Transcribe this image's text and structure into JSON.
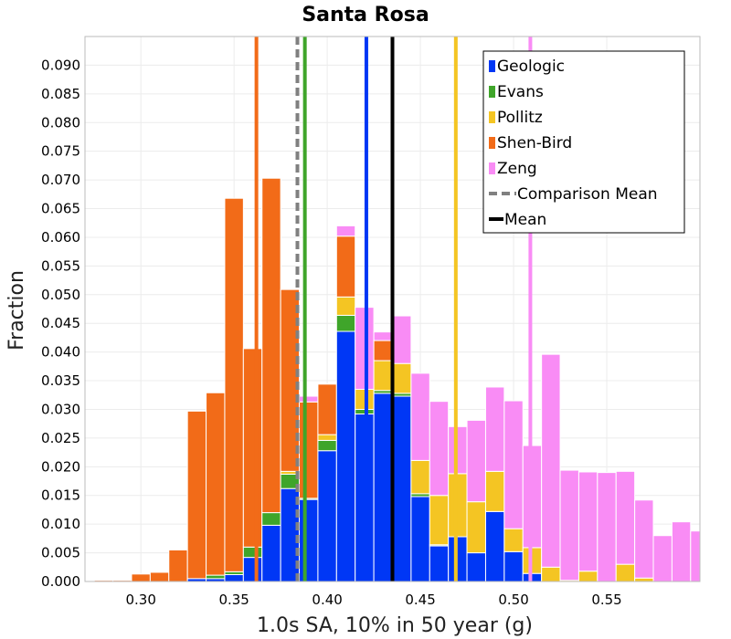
{
  "chart_data": {
    "type": "bar",
    "title": "Santa Rosa",
    "xlabel": "1.0s SA, 10% in 50 year (g)",
    "ylabel": "Fraction",
    "xlim": [
      0.27,
      0.6
    ],
    "ylim": [
      0.0,
      0.095
    ],
    "grid": true,
    "legend_position": "top-right",
    "x_ticks": [
      "0.30",
      "0.35",
      "0.40",
      "0.45",
      "0.50",
      "0.55"
    ],
    "y_ticks": [
      "0.000",
      "0.005",
      "0.010",
      "0.015",
      "0.020",
      "0.025",
      "0.030",
      "0.035",
      "0.040",
      "0.045",
      "0.050",
      "0.055",
      "0.060",
      "0.065",
      "0.070",
      "0.075",
      "0.080",
      "0.085",
      "0.090"
    ],
    "bin_width": 0.01,
    "bin_starts": [
      0.275,
      0.285,
      0.295,
      0.305,
      0.315,
      0.325,
      0.335,
      0.345,
      0.355,
      0.365,
      0.375,
      0.385,
      0.395,
      0.405,
      0.415,
      0.425,
      0.435,
      0.445,
      0.455,
      0.465,
      0.475,
      0.485,
      0.495,
      0.505,
      0.515,
      0.525,
      0.535,
      0.545,
      0.555,
      0.565,
      0.575,
      0.585,
      0.595
    ],
    "series": [
      {
        "name": "Geologic",
        "color": "#0037f5",
        "values": [
          0,
          0,
          0,
          0,
          0,
          0.0005,
          0.0005,
          0.0012,
          0.0042,
          0.0098,
          0.0162,
          0.0143,
          0.0228,
          0.0436,
          0.0292,
          0.0328,
          0.0323,
          0.0148,
          0.0062,
          0.0078,
          0.005,
          0.0122,
          0.0052,
          0.0014,
          0,
          0,
          0,
          0,
          0,
          0,
          0,
          0,
          0
        ]
      },
      {
        "name": "Evans",
        "color": "#3fa52a",
        "values": [
          0,
          0,
          0,
          0,
          0,
          0,
          0.0006,
          0.0005,
          0.0018,
          0.0022,
          0.0025,
          0.0002,
          0.0018,
          0.0028,
          0.0008,
          0.0005,
          0.0005,
          0.0005,
          0.0002,
          0,
          0,
          0,
          0,
          0,
          0,
          0,
          0,
          0,
          0,
          0,
          0,
          0,
          0
        ]
      },
      {
        "name": "Pollitz",
        "color": "#f4c523",
        "values": [
          0,
          0,
          0,
          0,
          0,
          0,
          0,
          0,
          0,
          0,
          0.0005,
          0,
          0.001,
          0.0032,
          0.0035,
          0.0052,
          0.0052,
          0.0058,
          0.0086,
          0.011,
          0.0089,
          0.007,
          0.004,
          0.0045,
          0.0025,
          0.0002,
          0.0018,
          0,
          0.003,
          0.0006,
          0,
          0,
          0
        ]
      },
      {
        "name": "Shen-Bird",
        "color": "#f26b18",
        "values": [
          0.0002,
          0.0002,
          0.0013,
          0.0016,
          0.0055,
          0.0292,
          0.0318,
          0.0651,
          0.0346,
          0.0583,
          0.0317,
          0.0168,
          0.0088,
          0.0106,
          0.0,
          0.0035,
          0,
          0,
          0,
          0,
          0,
          0,
          0,
          0,
          0,
          0,
          0,
          0,
          0,
          0,
          0,
          0,
          0
        ]
      },
      {
        "name": "Zeng",
        "color": "#f98cf5",
        "values": [
          0,
          0,
          0,
          0,
          0,
          0,
          0,
          0,
          0,
          0,
          0,
          0.001,
          0.0,
          0.0018,
          0.0143,
          0.0015,
          0.0083,
          0.0152,
          0.0164,
          0.0082,
          0.0142,
          0.0147,
          0.0223,
          0.0178,
          0.0371,
          0.0192,
          0.0173,
          0.019,
          0.0162,
          0.0136,
          0.008,
          0.0104,
          0.0088
        ]
      }
    ],
    "vertical_lines": [
      {
        "series": "Geologic",
        "x": 0.421,
        "color": "#0037f5",
        "style": "solid"
      },
      {
        "series": "Evans",
        "x": 0.388,
        "color": "#3fa52a",
        "style": "solid"
      },
      {
        "series": "Pollitz",
        "x": 0.469,
        "color": "#f4c523",
        "style": "solid"
      },
      {
        "series": "Shen-Bird",
        "x": 0.362,
        "color": "#f26b18",
        "style": "solid"
      },
      {
        "series": "Zeng",
        "x": 0.509,
        "color": "#f98cf5",
        "style": "solid"
      },
      {
        "series": "Comparison Mean",
        "x": 0.384,
        "color": "#808080",
        "style": "dashed"
      },
      {
        "series": "Mean",
        "x": 0.435,
        "color": "#000000",
        "style": "solid"
      }
    ],
    "legend": [
      {
        "label": "Geologic",
        "color": "#0037f5",
        "kind": "box"
      },
      {
        "label": "Evans",
        "color": "#3fa52a",
        "kind": "box"
      },
      {
        "label": "Pollitz",
        "color": "#f4c523",
        "kind": "box"
      },
      {
        "label": "Shen-Bird",
        "color": "#f26b18",
        "kind": "box"
      },
      {
        "label": "Zeng",
        "color": "#f98cf5",
        "kind": "box"
      },
      {
        "label": "Comparison Mean",
        "color": "#808080",
        "kind": "dashed"
      },
      {
        "label": "Mean",
        "color": "#000000",
        "kind": "line"
      }
    ]
  }
}
